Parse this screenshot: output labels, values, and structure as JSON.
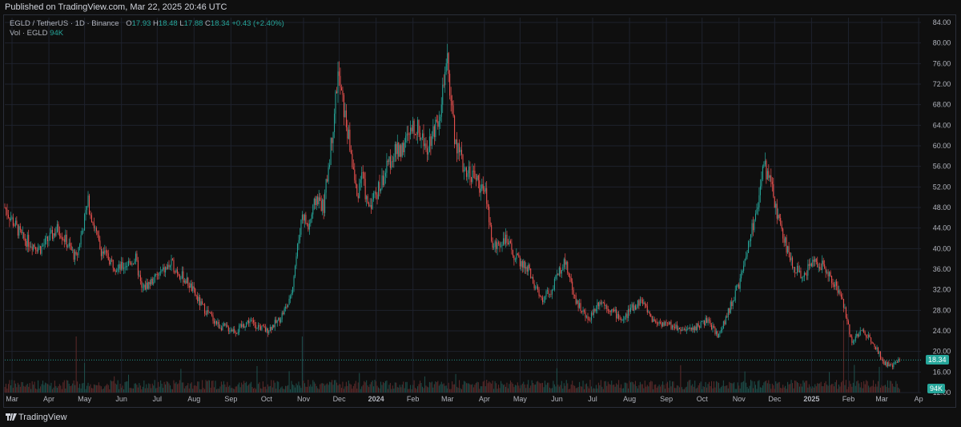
{
  "header": {
    "published": "Published on TradingView.com, Mar 22, 2025 20:46 UTC"
  },
  "legend": {
    "symbol": "EGLD / TetherUS · 1D · Binance",
    "o_label": "O",
    "o_value": "17.93",
    "h_label": "H",
    "h_value": "18.48",
    "l_label": "L",
    "l_value": "17.88",
    "c_label": "C",
    "c_value": "18.34",
    "change": "+0.43 (+2.40%)",
    "vol_label": "Vol · EGLD",
    "vol_value": "94K"
  },
  "price_tag": "18.34",
  "volume_tag": "94K",
  "footer": {
    "brand": "TradingView"
  },
  "colors": {
    "up": "#26a69a",
    "down": "#ef5350",
    "grid": "#1e222d",
    "text": "#b2b5be"
  },
  "chart_data": {
    "type": "line",
    "title": "",
    "xlabel": "",
    "ylabel": "",
    "ylim": [
      12,
      84
    ],
    "y_ticks": [
      "84.00",
      "80.00",
      "76.00",
      "72.00",
      "68.00",
      "64.00",
      "60.00",
      "56.00",
      "52.00",
      "48.00",
      "44.00",
      "40.00",
      "36.00",
      "32.00",
      "28.00",
      "24.00",
      "20.00",
      "16.00",
      "12.00"
    ],
    "x_ticks": [
      {
        "label": "Mar",
        "t": 0
      },
      {
        "label": "Apr",
        "t": 31
      },
      {
        "label": "May",
        "t": 61
      },
      {
        "label": "Jun",
        "t": 92
      },
      {
        "label": "Jul",
        "t": 122
      },
      {
        "label": "Aug",
        "t": 153
      },
      {
        "label": "Sep",
        "t": 184
      },
      {
        "label": "Oct",
        "t": 214
      },
      {
        "label": "Nov",
        "t": 245
      },
      {
        "label": "Dec",
        "t": 275
      },
      {
        "label": "2024",
        "t": 306,
        "bold": true
      },
      {
        "label": "Feb",
        "t": 337
      },
      {
        "label": "Mar",
        "t": 366
      },
      {
        "label": "Apr",
        "t": 397
      },
      {
        "label": "May",
        "t": 427
      },
      {
        "label": "Jun",
        "t": 458
      },
      {
        "label": "Jul",
        "t": 488
      },
      {
        "label": "Aug",
        "t": 519
      },
      {
        "label": "Sep",
        "t": 550
      },
      {
        "label": "Oct",
        "t": 580
      },
      {
        "label": "Nov",
        "t": 611
      },
      {
        "label": "Dec",
        "t": 641
      },
      {
        "label": "2025",
        "t": 672,
        "bold": true
      },
      {
        "label": "Feb",
        "t": 703
      },
      {
        "label": "Mar",
        "t": 731
      },
      {
        "label": "Ap",
        "t": 762
      }
    ],
    "t_range": [
      0,
      770
    ],
    "series": [
      {
        "values_t": [
          0,
          15,
          30,
          45,
          60,
          70,
          80,
          95,
          110,
          115,
          125,
          140,
          155,
          165,
          180,
          195,
          205,
          220,
          230,
          240,
          250,
          255,
          262,
          268,
          275,
          280,
          290,
          296,
          300,
          305,
          315,
          325,
          335,
          345,
          355,
          365,
          372,
          378,
          385,
          395,
          405,
          410,
          420,
          430,
          440,
          450,
          460,
          470,
          480,
          490,
          500,
          510,
          520,
          525,
          535,
          545,
          560,
          575,
          590,
          600,
          612,
          620,
          632,
          638,
          642,
          646,
          650,
          660,
          670,
          680,
          690,
          700,
          705,
          712,
          720,
          730,
          738,
          745,
          752
        ],
        "values": [
          48,
          42,
          40,
          44,
          38,
          49,
          40,
          36,
          38,
          32,
          34,
          37,
          33,
          29,
          25,
          24,
          26,
          24,
          26,
          30,
          47,
          44,
          50,
          48,
          62,
          74,
          60,
          50,
          55,
          48,
          52,
          58,
          60,
          64,
          60,
          66,
          76,
          62,
          56,
          54,
          50,
          40,
          42,
          38,
          36,
          30,
          32,
          38,
          30,
          26,
          30,
          28,
          26,
          28,
          30,
          26,
          25,
          24,
          26,
          23,
          30,
          35,
          48,
          56,
          54,
          50,
          46,
          38,
          34,
          38,
          36,
          32,
          29,
          22,
          24,
          22,
          18,
          17,
          18.34
        ]
      }
    ],
    "last_price": 18.34,
    "last_volume": "94K"
  }
}
